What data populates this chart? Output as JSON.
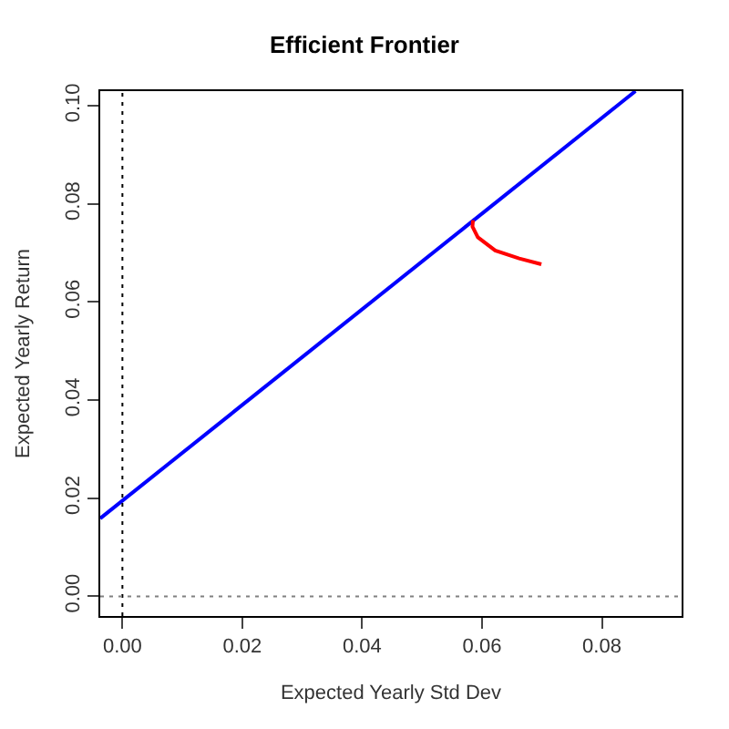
{
  "chart_data": {
    "type": "line",
    "title": "Efficient Frontier",
    "xlabel": "Expected Yearly Std Dev",
    "ylabel": "Expected Yearly Return",
    "xlim": [
      -0.0037,
      0.0933
    ],
    "ylim": [
      -0.004,
      0.103
    ],
    "xticks": [
      {
        "value": 0,
        "label": "0.00"
      },
      {
        "value": 0.02,
        "label": "0.02"
      },
      {
        "value": 0.04,
        "label": "0.04"
      },
      {
        "value": 0.06,
        "label": "0.06"
      },
      {
        "value": 0.08,
        "label": "0.08"
      }
    ],
    "yticks": [
      {
        "value": 0,
        "label": "0.00"
      },
      {
        "value": 0.02,
        "label": "0.02"
      },
      {
        "value": 0.04,
        "label": "0.04"
      },
      {
        "value": 0.06,
        "label": "0.06"
      },
      {
        "value": 0.08,
        "label": "0.08"
      },
      {
        "value": 0.1,
        "label": "0.10"
      }
    ],
    "marker": "none",
    "line_style": "solid",
    "series": [
      {
        "color": "#0000ff",
        "x": [
          -0.0037,
          0.0856
        ],
        "values": [
          0.0159,
          0.103
        ]
      },
      {
        "color": "#ff0000",
        "x": [
          0.0585,
          0.0584,
          0.0593,
          0.0622,
          0.0662,
          0.0699
        ],
        "values": [
          0.0767,
          0.0754,
          0.0732,
          0.0705,
          0.0689,
          0.0677
        ]
      }
    ],
    "ref_lines": [
      {
        "axis": "x",
        "value": 0,
        "line_style": "dotted",
        "color": "#000000"
      },
      {
        "axis": "y",
        "value": 0,
        "line_style": "dotted",
        "color": "#808080"
      }
    ]
  }
}
